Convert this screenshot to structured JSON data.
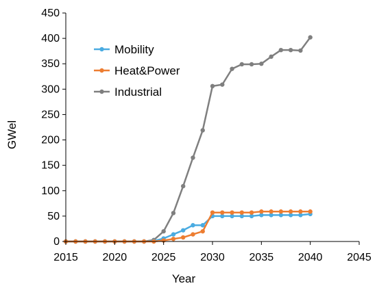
{
  "chart_data": {
    "type": "line",
    "title": "",
    "xlabel": "Year",
    "ylabel": "GWel",
    "xlim": [
      2015,
      2045
    ],
    "ylim": [
      0,
      450
    ],
    "x_ticks": [
      2015,
      2020,
      2025,
      2030,
      2035,
      2040,
      2045
    ],
    "y_ticks": [
      0,
      50,
      100,
      150,
      200,
      250,
      300,
      350,
      400,
      450
    ],
    "x_tick_labels": [
      "2015",
      "2020",
      "2025",
      "2030",
      "2035",
      "2040",
      "2045"
    ],
    "y_tick_labels": [
      "0",
      "50",
      "100",
      "150",
      "200",
      "250",
      "300",
      "350",
      "400",
      "450"
    ],
    "grid": false,
    "legend": {
      "placement": "top-left",
      "entries": [
        "Mobility",
        "Heat&Power",
        "Industrial"
      ]
    },
    "x": [
      2015,
      2016,
      2017,
      2018,
      2019,
      2020,
      2021,
      2022,
      2023,
      2024,
      2025,
      2026,
      2027,
      2028,
      2029,
      2030,
      2031,
      2032,
      2033,
      2034,
      2035,
      2036,
      2037,
      2038,
      2039,
      2040
    ],
    "series": [
      {
        "name": "Industrial",
        "color": "#7f7f7f",
        "values": [
          0,
          0,
          0,
          0,
          0,
          0,
          0,
          0,
          0,
          3,
          20,
          56,
          109,
          165,
          219,
          306,
          309,
          340,
          349,
          349,
          350,
          364,
          377,
          377,
          376,
          402
        ]
      },
      {
        "name": "Mobility",
        "color": "#4aabe1",
        "values": [
          0,
          0,
          0,
          0,
          0,
          0,
          0,
          0,
          0,
          1,
          6,
          14,
          22,
          32,
          32,
          50,
          50,
          50,
          50,
          50,
          52,
          52,
          52,
          52,
          52,
          54
        ]
      },
      {
        "name": "Heat&Power",
        "color": "#ed7d31",
        "values": [
          0,
          0,
          0,
          0,
          0,
          0,
          0,
          0,
          0,
          0,
          2,
          5,
          8,
          14,
          20,
          57,
          57,
          57,
          57,
          57,
          59,
          59,
          59,
          59,
          59,
          59
        ]
      }
    ]
  }
}
